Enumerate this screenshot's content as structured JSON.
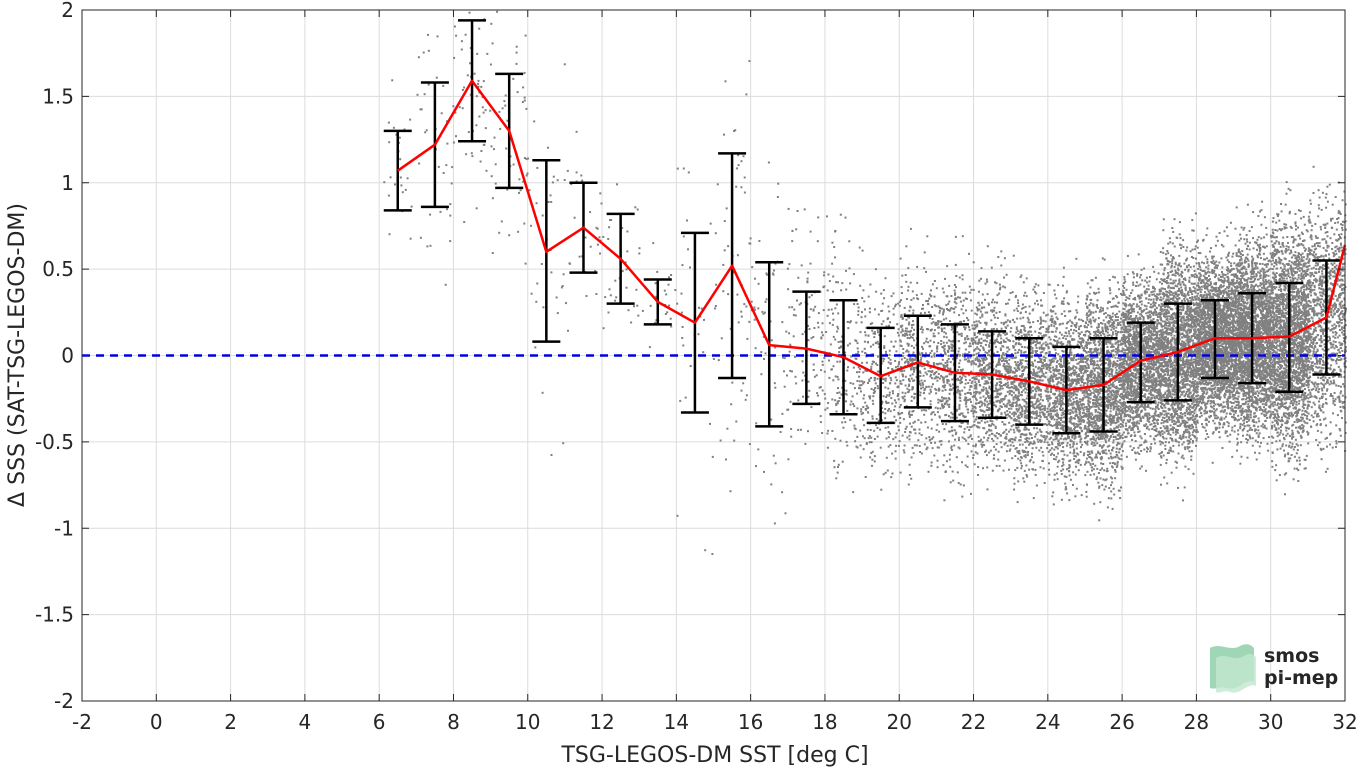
{
  "chart_data": {
    "type": "scatter",
    "xlabel": "TSG-LEGOS-DM SST [deg C]",
    "ylabel": "Δ SSS (SAT-TSG-LEGOS-DM)",
    "xlim": [
      -2,
      32
    ],
    "ylim": [
      -2,
      2
    ],
    "xticks": [
      -2,
      0,
      2,
      4,
      6,
      8,
      10,
      12,
      14,
      16,
      18,
      20,
      22,
      24,
      26,
      28,
      30,
      32
    ],
    "xtick_labels": [
      "-2",
      "0",
      "2",
      "4",
      "6",
      "8",
      "10",
      "12",
      "14",
      "16",
      "18",
      "20",
      "22",
      "24",
      "26",
      "28",
      "30",
      "32"
    ],
    "yticks": [
      -2,
      -1.5,
      -1,
      -0.5,
      0,
      0.5,
      1,
      1.5,
      2
    ],
    "ytick_labels": [
      "-2",
      "-1.5",
      "-1",
      "-0.5",
      "0",
      "0.5",
      "1",
      "1.5",
      "2"
    ],
    "grid": true,
    "reference_line": {
      "y": 0,
      "color": "#0000e0",
      "style": "dashed"
    },
    "scatter_color": "#808080",
    "binned_mean": {
      "color": "#ff0000",
      "x": [
        6.5,
        7.5,
        8.5,
        9.5,
        10.5,
        11.5,
        12.5,
        13.5,
        14.5,
        15.5,
        16.5,
        17.5,
        18.5,
        19.5,
        20.5,
        21.5,
        22.5,
        23.5,
        24.5,
        25.5,
        26.5,
        27.5,
        28.5,
        29.5,
        30.5,
        31.5,
        32.0
      ],
      "y": [
        1.07,
        1.22,
        1.59,
        1.3,
        0.6,
        0.74,
        0.56,
        0.31,
        0.19,
        0.52,
        0.06,
        0.04,
        -0.01,
        -0.12,
        -0.04,
        -0.1,
        -0.11,
        -0.15,
        -0.2,
        -0.17,
        -0.03,
        0.02,
        0.1,
        0.1,
        0.11,
        0.22,
        0.64
      ]
    },
    "error_bars": {
      "color": "#000000",
      "x": [
        6.5,
        7.5,
        8.5,
        9.5,
        10.5,
        11.5,
        12.5,
        13.5,
        14.5,
        15.5,
        16.5,
        17.5,
        18.5,
        19.5,
        20.5,
        21.5,
        22.5,
        23.5,
        24.5,
        25.5,
        26.5,
        27.5,
        28.5,
        29.5,
        30.5,
        31.5
      ],
      "lower": [
        0.84,
        0.86,
        1.24,
        0.97,
        0.08,
        0.48,
        0.3,
        0.18,
        -0.33,
        -0.13,
        -0.41,
        -0.28,
        -0.34,
        -0.39,
        -0.3,
        -0.38,
        -0.36,
        -0.4,
        -0.45,
        -0.44,
        -0.27,
        -0.26,
        -0.13,
        -0.16,
        -0.21,
        -0.11
      ],
      "upper": [
        1.3,
        1.58,
        1.94,
        1.63,
        1.13,
        1.0,
        0.82,
        0.44,
        0.71,
        1.17,
        0.54,
        0.37,
        0.32,
        0.16,
        0.23,
        0.18,
        0.14,
        0.1,
        0.05,
        0.1,
        0.19,
        0.3,
        0.32,
        0.36,
        0.42,
        0.55
      ]
    },
    "scatter_density": {
      "bin_centers": [
        6.5,
        7.5,
        8.5,
        9.5,
        10.5,
        11.5,
        12.5,
        13.5,
        14.5,
        15.5,
        16.5,
        17.5,
        18.5,
        19.5,
        20.5,
        21.5,
        22.5,
        23.5,
        24.5,
        25.5,
        26.5,
        27.5,
        28.5,
        29.5,
        30.5,
        31.5
      ],
      "relative_count": [
        8,
        12,
        18,
        15,
        10,
        10,
        10,
        8,
        10,
        18,
        20,
        35,
        60,
        90,
        130,
        170,
        220,
        260,
        320,
        420,
        520,
        620,
        720,
        760,
        700,
        320
      ]
    }
  },
  "logo": {
    "line1": "smos",
    "line2": "pi-mep",
    "color": "#6fbf8f"
  }
}
